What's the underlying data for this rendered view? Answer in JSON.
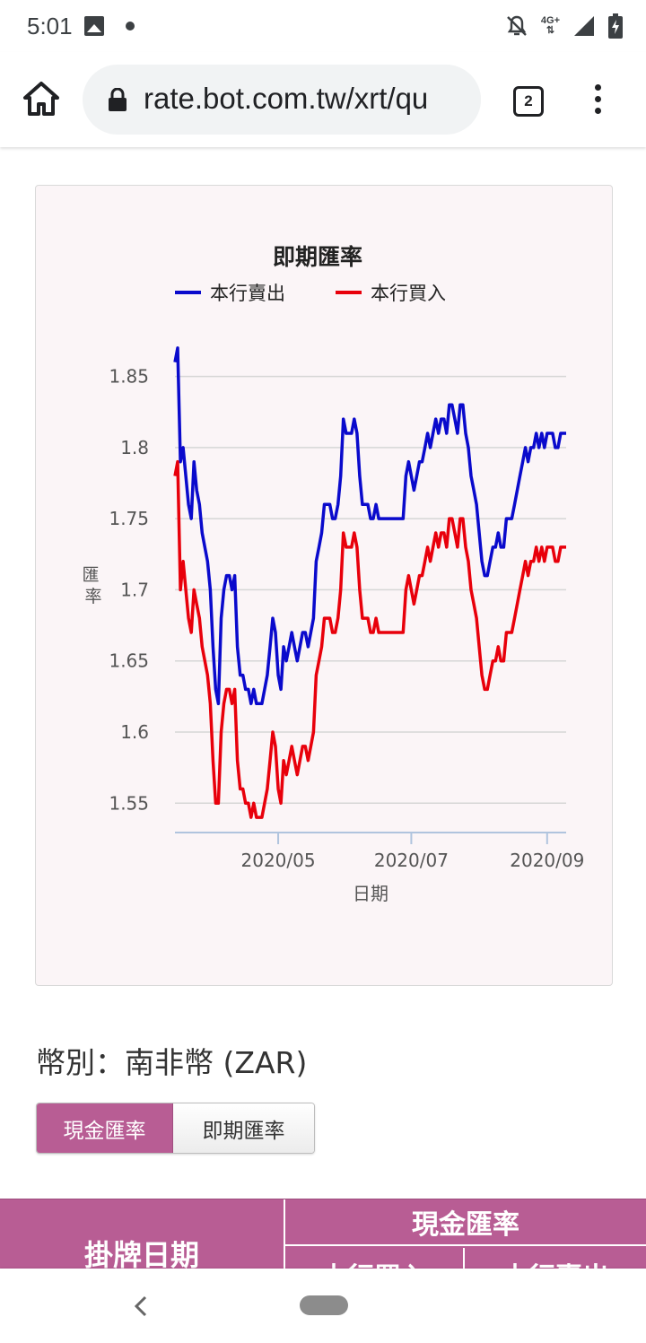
{
  "status_bar": {
    "time": "5:01",
    "network": "4G+",
    "icons": [
      "image-icon",
      "notification-dot-icon",
      "bell-off-icon",
      "signal-icon",
      "battery-charging-icon"
    ]
  },
  "browser": {
    "url": "rate.bot.com.tw/xrt/qu",
    "tab_count": "2",
    "icons": [
      "home-icon",
      "lock-icon",
      "tabs-icon",
      "more-vert-icon"
    ]
  },
  "chart_data": {
    "type": "line",
    "title": "即期匯率",
    "xlabel": "日期",
    "ylabel": "匯率",
    "ylim": [
      1.53,
      1.88
    ],
    "y_ticks": [
      1.55,
      1.6,
      1.65,
      1.7,
      1.75,
      1.8,
      1.85
    ],
    "y_tick_labels": [
      "1.55",
      "1.6",
      "1.65",
      "1.7",
      "1.75",
      "1.8",
      "1.85"
    ],
    "x_ticks": [
      {
        "index": 38,
        "label": "2020/05"
      },
      {
        "index": 87,
        "label": "2020/07"
      },
      {
        "index": 137,
        "label": "2020/09"
      }
    ],
    "legend_position": "top",
    "grid": true,
    "series": [
      {
        "name": "本行賣出",
        "color": "#0a0acc",
        "values": [
          1.86,
          1.87,
          1.79,
          1.8,
          1.78,
          1.76,
          1.75,
          1.79,
          1.77,
          1.76,
          1.74,
          1.73,
          1.72,
          1.7,
          1.66,
          1.63,
          1.62,
          1.68,
          1.7,
          1.71,
          1.71,
          1.7,
          1.71,
          1.66,
          1.64,
          1.64,
          1.63,
          1.63,
          1.62,
          1.63,
          1.62,
          1.62,
          1.62,
          1.63,
          1.64,
          1.66,
          1.68,
          1.67,
          1.64,
          1.63,
          1.66,
          1.65,
          1.66,
          1.67,
          1.66,
          1.65,
          1.66,
          1.67,
          1.67,
          1.66,
          1.67,
          1.68,
          1.72,
          1.73,
          1.74,
          1.76,
          1.76,
          1.76,
          1.75,
          1.75,
          1.76,
          1.78,
          1.82,
          1.81,
          1.81,
          1.81,
          1.82,
          1.81,
          1.78,
          1.76,
          1.76,
          1.76,
          1.75,
          1.75,
          1.76,
          1.75,
          1.75,
          1.75,
          1.75,
          1.75,
          1.75,
          1.75,
          1.75,
          1.75,
          1.75,
          1.78,
          1.79,
          1.78,
          1.77,
          1.78,
          1.79,
          1.79,
          1.8,
          1.81,
          1.8,
          1.81,
          1.82,
          1.81,
          1.82,
          1.82,
          1.81,
          1.83,
          1.83,
          1.82,
          1.81,
          1.83,
          1.83,
          1.81,
          1.8,
          1.78,
          1.77,
          1.76,
          1.74,
          1.72,
          1.71,
          1.71,
          1.72,
          1.73,
          1.73,
          1.74,
          1.73,
          1.73,
          1.75,
          1.75,
          1.75,
          1.76,
          1.77,
          1.78,
          1.79,
          1.8,
          1.79,
          1.8,
          1.8,
          1.81,
          1.8,
          1.81,
          1.8,
          1.81,
          1.81,
          1.81,
          1.8,
          1.8,
          1.81,
          1.81,
          1.81
        ]
      },
      {
        "name": "本行買入",
        "color": "#e8000b",
        "values": [
          1.78,
          1.79,
          1.7,
          1.72,
          1.7,
          1.68,
          1.67,
          1.7,
          1.69,
          1.68,
          1.66,
          1.65,
          1.64,
          1.62,
          1.58,
          1.55,
          1.55,
          1.6,
          1.62,
          1.63,
          1.63,
          1.62,
          1.63,
          1.58,
          1.56,
          1.56,
          1.55,
          1.55,
          1.54,
          1.55,
          1.54,
          1.54,
          1.54,
          1.55,
          1.56,
          1.58,
          1.6,
          1.59,
          1.56,
          1.55,
          1.58,
          1.57,
          1.58,
          1.59,
          1.58,
          1.57,
          1.58,
          1.59,
          1.59,
          1.58,
          1.59,
          1.6,
          1.64,
          1.65,
          1.66,
          1.68,
          1.68,
          1.68,
          1.67,
          1.67,
          1.68,
          1.7,
          1.74,
          1.73,
          1.73,
          1.73,
          1.74,
          1.73,
          1.7,
          1.68,
          1.68,
          1.68,
          1.67,
          1.67,
          1.68,
          1.67,
          1.67,
          1.67,
          1.67,
          1.67,
          1.67,
          1.67,
          1.67,
          1.67,
          1.67,
          1.7,
          1.71,
          1.7,
          1.69,
          1.7,
          1.71,
          1.71,
          1.72,
          1.73,
          1.72,
          1.73,
          1.74,
          1.73,
          1.74,
          1.74,
          1.73,
          1.75,
          1.75,
          1.74,
          1.73,
          1.75,
          1.75,
          1.73,
          1.72,
          1.7,
          1.69,
          1.68,
          1.66,
          1.64,
          1.63,
          1.63,
          1.64,
          1.65,
          1.65,
          1.66,
          1.65,
          1.65,
          1.67,
          1.67,
          1.67,
          1.68,
          1.69,
          1.7,
          1.71,
          1.72,
          1.71,
          1.72,
          1.72,
          1.73,
          1.72,
          1.73,
          1.72,
          1.73,
          1.73,
          1.73,
          1.72,
          1.72,
          1.73,
          1.73,
          1.73
        ]
      }
    ]
  },
  "currency": {
    "label": "幣別：南非幣 (ZAR)"
  },
  "tabs": {
    "cash": "現金匯率",
    "spot": "即期匯率"
  },
  "table": {
    "header_date": "掛牌日期",
    "header_cash": "現金匯率",
    "header_buy": "本行買入",
    "header_sell": "本行賣出"
  }
}
